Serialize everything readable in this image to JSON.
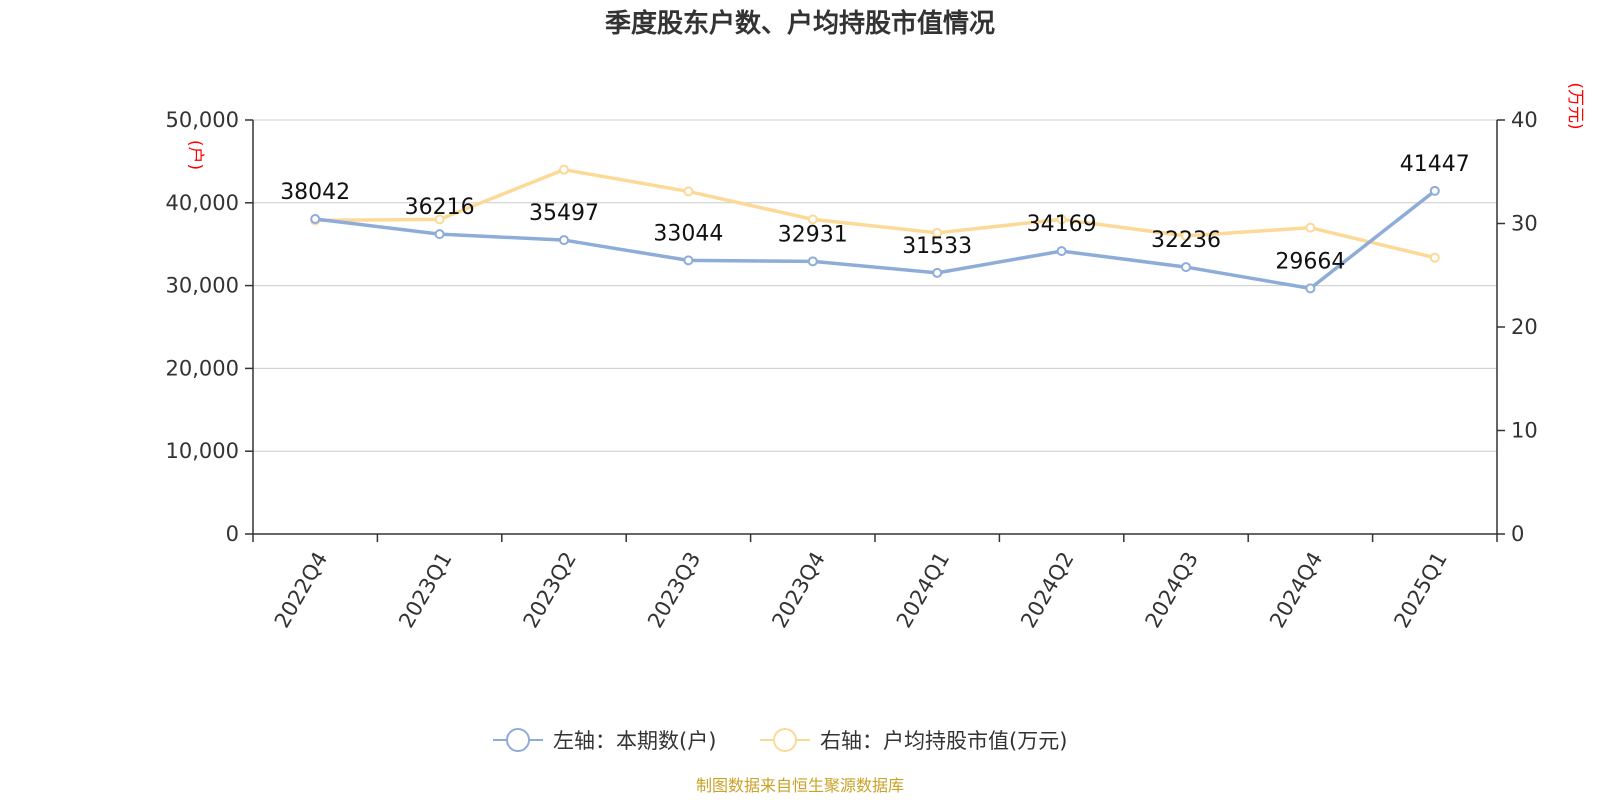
{
  "chart_data": {
    "type": "line",
    "title": "季度股东户数、户均持股市值情况",
    "categories": [
      "2022Q4",
      "2023Q1",
      "2023Q2",
      "2023Q3",
      "2023Q4",
      "2024Q1",
      "2024Q2",
      "2024Q3",
      "2024Q4",
      "2025Q1"
    ],
    "left_axis": {
      "unit": "(户)",
      "range": [
        0,
        50000
      ],
      "ticks": [
        "0",
        "10,000",
        "20,000",
        "30,000",
        "40,000",
        "50,000"
      ],
      "tick_values": [
        0,
        10000,
        20000,
        30000,
        40000,
        50000
      ]
    },
    "right_axis": {
      "unit": "(万元)",
      "range": [
        0,
        40
      ],
      "ticks": [
        "0",
        "10",
        "20",
        "30",
        "40"
      ],
      "tick_values": [
        0,
        10,
        20,
        30,
        40
      ]
    },
    "grid": true,
    "legend_position": "bottom",
    "series": [
      {
        "name": "左轴：本期数(户)",
        "axis": "left",
        "color": "#8eacd8",
        "values": [
          38042,
          36216,
          35497,
          33044,
          32931,
          31533,
          34169,
          32236,
          29664,
          41447
        ],
        "labels": [
          "38042",
          "36216",
          "35497",
          "33044",
          "32931",
          "31533",
          "34169",
          "32236",
          "29664",
          "41447"
        ]
      },
      {
        "name": "右轴：户均持股市值(万元)",
        "axis": "right",
        "color": "#fdd998",
        "values": [
          30.3,
          30.4,
          35.2,
          33.1,
          30.4,
          29.1,
          30.4,
          28.8,
          29.6,
          26.7
        ]
      }
    ],
    "source": "制图数据来自恒生聚源数据库"
  }
}
